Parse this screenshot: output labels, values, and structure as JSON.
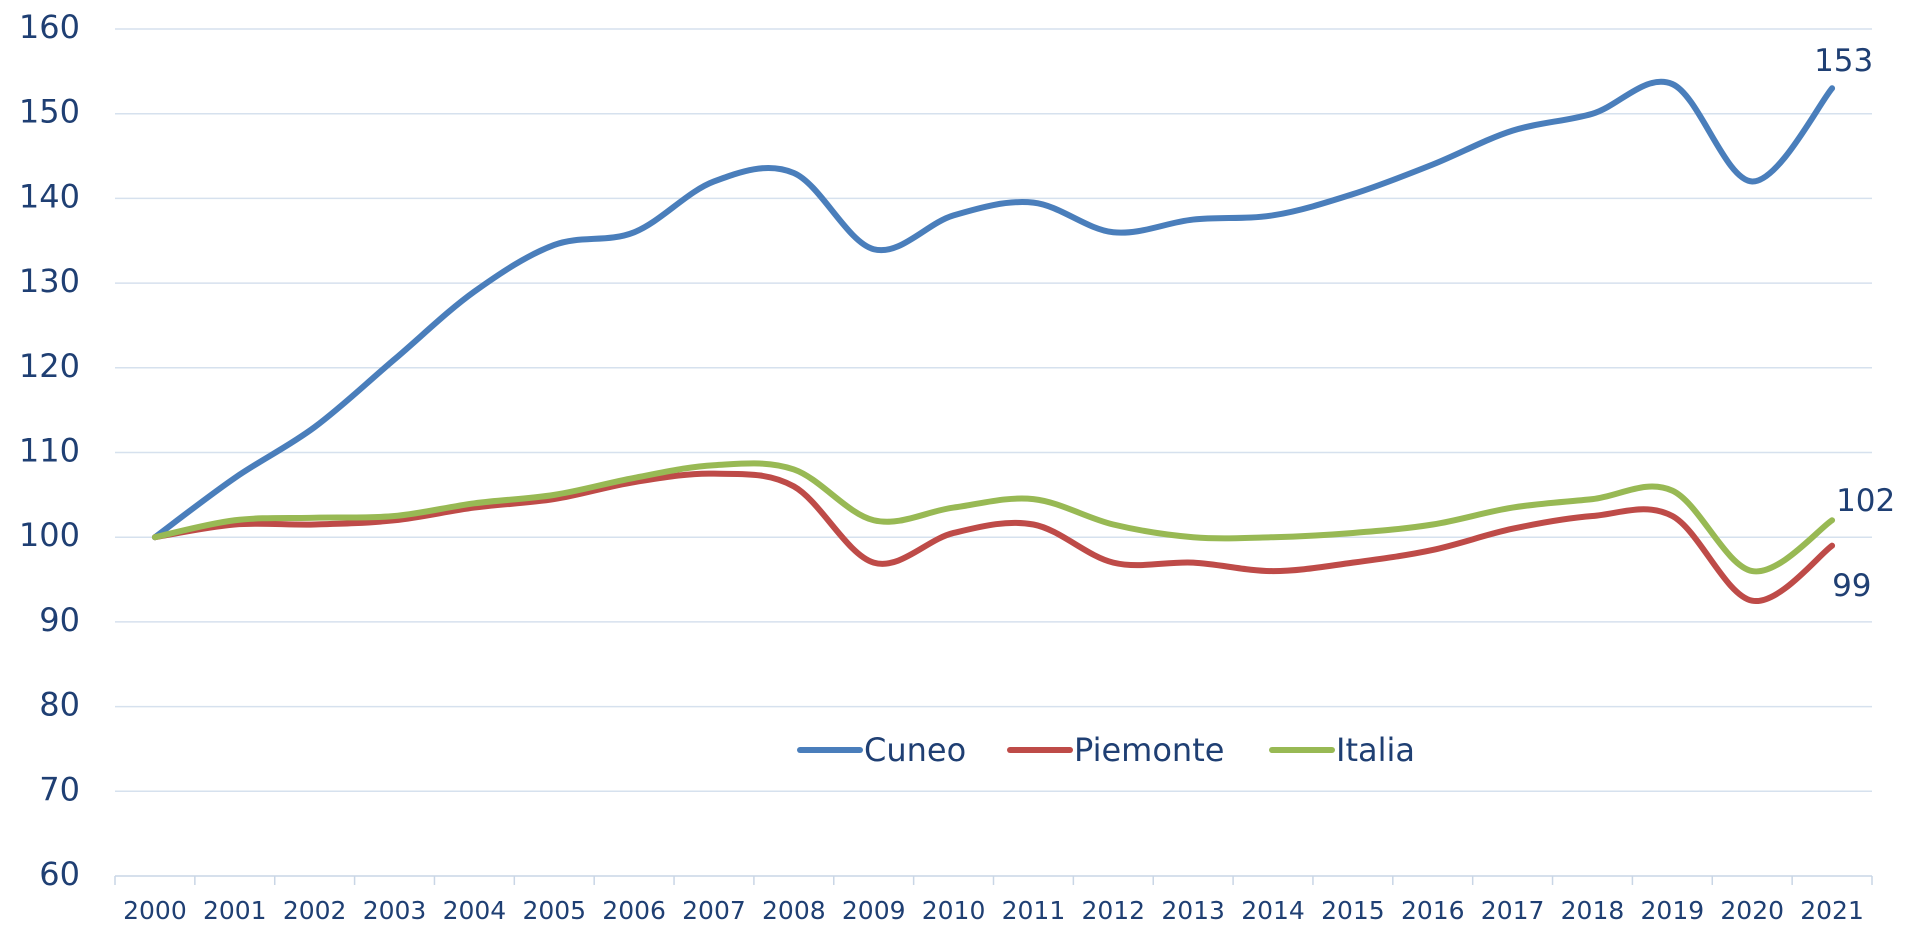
{
  "chart_data": {
    "type": "line",
    "categories": [
      "2000",
      "2001",
      "2002",
      "2003",
      "2004",
      "2005",
      "2006",
      "2007",
      "2008",
      "2009",
      "2010",
      "2011",
      "2012",
      "2013",
      "2014",
      "2015",
      "2016",
      "2017",
      "2018",
      "2019",
      "2020",
      "2021"
    ],
    "series": [
      {
        "name": "Cuneo",
        "color": "#4a7ebb",
        "values": [
          100,
          107,
          113,
          121,
          129,
          134.5,
          136,
          142,
          143,
          134,
          138,
          139.5,
          136,
          137.5,
          138,
          140.5,
          144,
          148,
          150,
          153.5,
          142,
          153
        ]
      },
      {
        "name": "Piemonte",
        "color": "#be4b48",
        "values": [
          100,
          101.5,
          101.5,
          102,
          103.5,
          104.5,
          106.5,
          107.5,
          106,
          97,
          100.5,
          101.5,
          97,
          97,
          96,
          97,
          98.5,
          101,
          102.5,
          102.5,
          92.5,
          99
        ]
      },
      {
        "name": "Italia",
        "color": "#98b954",
        "values": [
          100,
          102,
          102.3,
          102.5,
          104,
          105,
          107,
          108.5,
          108,
          102,
          103.5,
          104.5,
          101.5,
          100,
          100,
          100.5,
          101.5,
          103.5,
          104.5,
          105.5,
          96,
          102
        ]
      }
    ],
    "ylim": [
      60,
      160
    ],
    "yticks": [
      60,
      70,
      80,
      90,
      100,
      110,
      120,
      130,
      140,
      150,
      160
    ],
    "grid": true,
    "legend": "center"
  }
}
